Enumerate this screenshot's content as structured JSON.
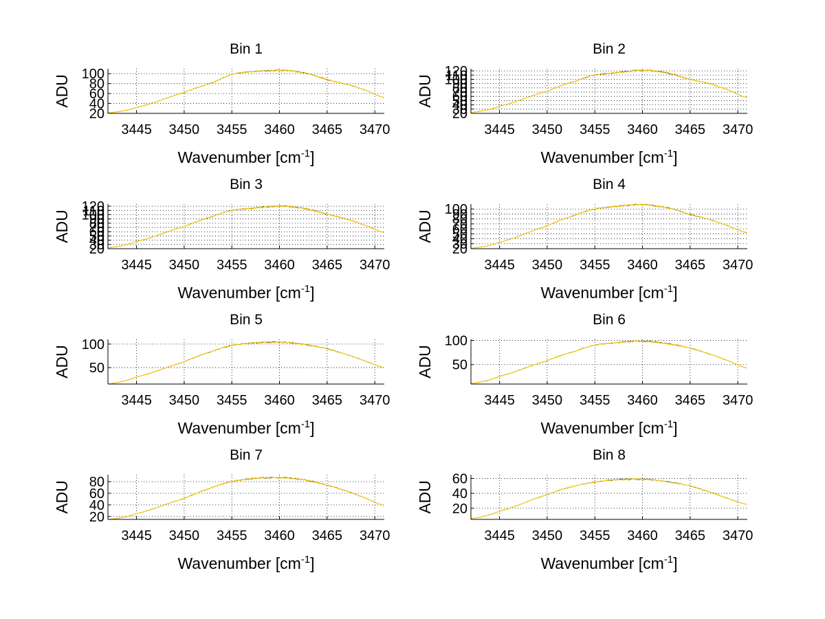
{
  "chart_data": [
    {
      "type": "line",
      "title": "Bin 1",
      "xlabel": "Wavenumber [cm",
      "xlabel_sup": "-1",
      "xlabel_end": "]",
      "ylabel": "ADU",
      "xlim": [
        3442,
        3471
      ],
      "ylim": [
        20,
        110
      ],
      "xticks": [
        3445,
        3450,
        3455,
        3460,
        3465,
        3470
      ],
      "xtick_labels": [
        "3445",
        "3450",
        "3455",
        "3460",
        "3465",
        "3470"
      ],
      "yticks": [
        20,
        40,
        60,
        80,
        100
      ],
      "ytick_labels": [
        "20",
        "40",
        "60",
        "80",
        "100"
      ],
      "grid": true,
      "series_colors": [
        "#404040",
        "#ffcc00"
      ],
      "x": [
        3442,
        3445,
        3450,
        3453,
        3455,
        3457,
        3459,
        3460,
        3461,
        3463,
        3465,
        3467,
        3469,
        3471
      ],
      "y": [
        21,
        32,
        62,
        82,
        98,
        104,
        106,
        107,
        106,
        100,
        88,
        79,
        67,
        52
      ]
    },
    {
      "type": "line",
      "title": "Bin 2",
      "xlabel": "Wavenumber [cm",
      "xlabel_sup": "-1",
      "xlabel_end": "]",
      "ylabel": "ADU",
      "xlim": [
        3442,
        3471
      ],
      "ylim": [
        20,
        125
      ],
      "xticks": [
        3445,
        3450,
        3455,
        3460,
        3465,
        3470
      ],
      "xtick_labels": [
        "3445",
        "3450",
        "3455",
        "3460",
        "3465",
        "3470"
      ],
      "yticks": [
        20,
        30,
        40,
        50,
        60,
        70,
        80,
        90,
        100,
        110,
        120
      ],
      "ytick_labels": [
        "20",
        "30",
        "40",
        "50",
        "60",
        "70",
        "80",
        "90",
        "100",
        "110",
        "120"
      ],
      "grid": true,
      "series_colors": [
        "#404040",
        "#ffcc00"
      ],
      "x": [
        3442,
        3445,
        3450,
        3453,
        3455,
        3457,
        3459,
        3460,
        3461,
        3463,
        3465,
        3467,
        3469,
        3471
      ],
      "y": [
        22,
        37,
        72,
        96,
        110,
        115,
        120,
        121,
        120,
        113,
        100,
        90,
        75,
        57
      ]
    },
    {
      "type": "line",
      "title": "Bin 3",
      "xlabel": "Wavenumber [cm",
      "xlabel_sup": "-1",
      "xlabel_end": "]",
      "ylabel": "ADU",
      "xlim": [
        3442,
        3471
      ],
      "ylim": [
        20,
        125
      ],
      "xticks": [
        3445,
        3450,
        3455,
        3460,
        3465,
        3470
      ],
      "xtick_labels": [
        "3445",
        "3450",
        "3455",
        "3460",
        "3465",
        "3470"
      ],
      "yticks": [
        20,
        30,
        40,
        50,
        60,
        70,
        80,
        90,
        100,
        110,
        120
      ],
      "ytick_labels": [
        "20",
        "30",
        "40",
        "50",
        "60",
        "70",
        "80",
        "90",
        "100",
        "110",
        "120"
      ],
      "grid": true,
      "series_colors": [
        "#404040",
        "#ffcc00"
      ],
      "x": [
        3442,
        3445,
        3450,
        3453,
        3455,
        3457,
        3459,
        3460,
        3461,
        3463,
        3465,
        3467,
        3469,
        3471
      ],
      "y": [
        22,
        37,
        72,
        96,
        110,
        115,
        119,
        120,
        119,
        113,
        101,
        90,
        75,
        58
      ]
    },
    {
      "type": "line",
      "title": "Bin 4",
      "xlabel": "Wavenumber [cm",
      "xlabel_sup": "-1",
      "xlabel_end": "]",
      "ylabel": "ADU",
      "xlim": [
        3442,
        3471
      ],
      "ylim": [
        20,
        110
      ],
      "xticks": [
        3445,
        3450,
        3455,
        3460,
        3465,
        3470
      ],
      "xtick_labels": [
        "3445",
        "3450",
        "3455",
        "3460",
        "3465",
        "3470"
      ],
      "yticks": [
        20,
        30,
        40,
        50,
        60,
        70,
        80,
        90,
        100
      ],
      "ytick_labels": [
        "20",
        "30",
        "40",
        "50",
        "60",
        "70",
        "80",
        "90",
        "100"
      ],
      "grid": true,
      "series_colors": [
        "#404040",
        "#ffcc00"
      ],
      "x": [
        3442,
        3445,
        3450,
        3453,
        3455,
        3457,
        3459,
        3460,
        3461,
        3463,
        3465,
        3467,
        3469,
        3471
      ],
      "y": [
        21,
        33,
        66,
        88,
        100,
        105,
        108,
        109,
        107,
        101,
        89,
        79,
        66,
        52
      ]
    },
    {
      "type": "line",
      "title": "Bin 5",
      "xlabel": "Wavenumber [cm",
      "xlabel_sup": "-1",
      "xlabel_end": "]",
      "ylabel": "ADU",
      "xlim": [
        3442,
        3471
      ],
      "ylim": [
        15,
        110
      ],
      "xticks": [
        3445,
        3450,
        3455,
        3460,
        3465,
        3470
      ],
      "xtick_labels": [
        "3445",
        "3450",
        "3455",
        "3460",
        "3465",
        "3470"
      ],
      "yticks": [
        50,
        100
      ],
      "ytick_labels": [
        "50",
        "100"
      ],
      "grid": true,
      "series_colors": [
        "#404040",
        "#ffcc00"
      ],
      "x": [
        3442,
        3445,
        3450,
        3453,
        3455,
        3457,
        3459,
        3460,
        3461,
        3463,
        3465,
        3467,
        3469,
        3471
      ],
      "y": [
        15,
        30,
        62,
        85,
        97,
        102,
        104,
        104,
        103,
        98,
        90,
        78,
        64,
        50
      ]
    },
    {
      "type": "line",
      "title": "Bin 6",
      "xlabel": "Wavenumber [cm",
      "xlabel_sup": "-1",
      "xlabel_end": "]",
      "ylabel": "ADU",
      "xlim": [
        3442,
        3471
      ],
      "ylim": [
        10,
        102
      ],
      "xticks": [
        3445,
        3450,
        3455,
        3460,
        3465,
        3470
      ],
      "xtick_labels": [
        "3445",
        "3450",
        "3455",
        "3460",
        "3465",
        "3470"
      ],
      "yticks": [
        50,
        100
      ],
      "ytick_labels": [
        "50",
        "100"
      ],
      "grid": true,
      "series_colors": [
        "#404040",
        "#ffcc00"
      ],
      "x": [
        3442,
        3445,
        3450,
        3453,
        3455,
        3457,
        3459,
        3460,
        3461,
        3463,
        3465,
        3467,
        3469,
        3471
      ],
      "y": [
        11,
        26,
        58,
        78,
        90,
        95,
        98,
        98,
        97,
        92,
        84,
        72,
        58,
        43
      ]
    },
    {
      "type": "line",
      "title": "Bin 7",
      "xlabel": "Wavenumber [cm",
      "xlabel_sup": "-1",
      "xlabel_end": "]",
      "ylabel": "ADU",
      "xlim": [
        3442,
        3471
      ],
      "ylim": [
        15,
        92
      ],
      "xticks": [
        3445,
        3450,
        3455,
        3460,
        3465,
        3470
      ],
      "xtick_labels": [
        "3445",
        "3450",
        "3455",
        "3460",
        "3465",
        "3470"
      ],
      "yticks": [
        20,
        40,
        60,
        80
      ],
      "ytick_labels": [
        "20",
        "40",
        "60",
        "80"
      ],
      "grid": true,
      "series_colors": [
        "#404040",
        "#ffcc00"
      ],
      "x": [
        3442,
        3445,
        3450,
        3453,
        3455,
        3457,
        3459,
        3460,
        3461,
        3463,
        3465,
        3467,
        3469,
        3471
      ],
      "y": [
        15,
        25,
        51,
        70,
        80,
        85,
        87,
        87,
        86,
        82,
        74,
        64,
        52,
        39
      ]
    },
    {
      "type": "line",
      "title": "Bin 8",
      "xlabel": "Wavenumber [cm",
      "xlabel_sup": "-1",
      "xlabel_end": "]",
      "ylabel": "ADU",
      "xlim": [
        3442,
        3471
      ],
      "ylim": [
        5,
        65
      ],
      "xticks": [
        3445,
        3450,
        3455,
        3460,
        3465,
        3470
      ],
      "xtick_labels": [
        "3445",
        "3450",
        "3455",
        "3460",
        "3465",
        "3470"
      ],
      "yticks": [
        20,
        40,
        60
      ],
      "ytick_labels": [
        "20",
        "40",
        "60"
      ],
      "grid": true,
      "series_colors": [
        "#404040",
        "#ffcc00"
      ],
      "x": [
        3442,
        3445,
        3450,
        3453,
        3455,
        3457,
        3459,
        3460,
        3461,
        3463,
        3465,
        3467,
        3469,
        3471
      ],
      "y": [
        6,
        16,
        38,
        50,
        55,
        58,
        59,
        59,
        58,
        55,
        50,
        42,
        33,
        25
      ]
    }
  ]
}
